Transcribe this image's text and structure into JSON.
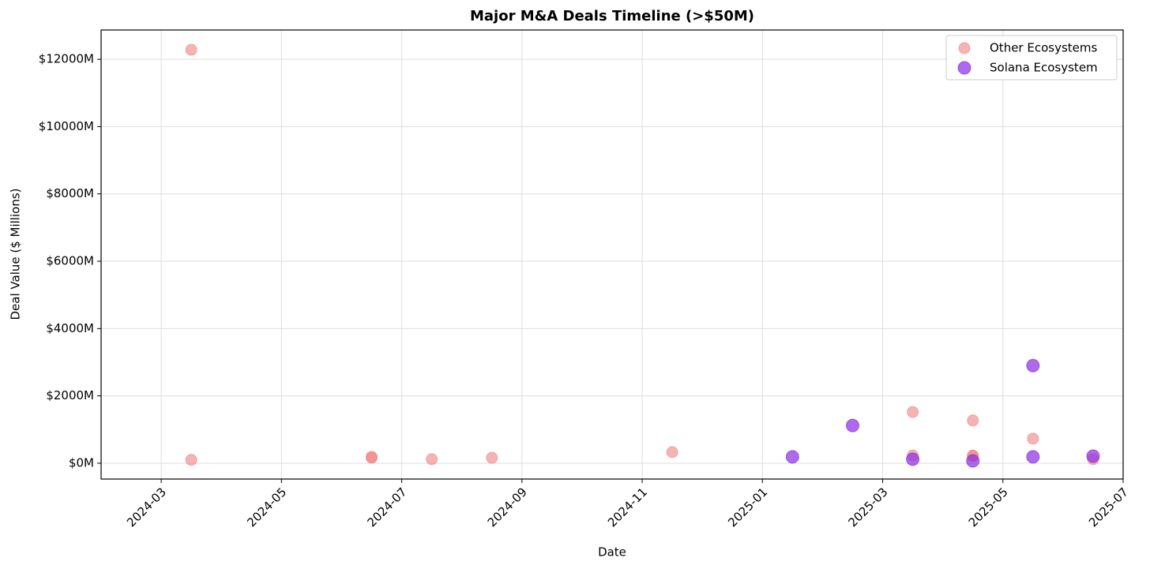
{
  "chart_data": {
    "type": "scatter",
    "title": "Major M&A Deals Timeline (>$50M)",
    "x_label": "Date",
    "y_label": "Deal Value ($ Millions)",
    "series": [
      {
        "name": "Other Ecosystems",
        "color": "#f08080",
        "alpha": 0.6,
        "x": [
          "2024-03",
          "2024-03",
          "2024-06",
          "2024-06",
          "2024-07",
          "2024-08",
          "2024-11",
          "2025-03",
          "2025-03",
          "2025-04",
          "2025-04",
          "2025-04",
          "2025-05",
          "2025-06"
        ],
        "values": [
          12280,
          100,
          160,
          190,
          120,
          160,
          330,
          1520,
          230,
          1270,
          230,
          210,
          730,
          120
        ]
      },
      {
        "name": "Solana Ecosystem",
        "color": "#8a2be2",
        "alpha": 0.7,
        "x": [
          "2025-01",
          "2025-02",
          "2025-03",
          "2025-04",
          "2025-05",
          "2025-05",
          "2025-06"
        ],
        "values": [
          190,
          1120,
          120,
          70,
          2900,
          190,
          210
        ]
      }
    ],
    "xlim": [
      "2024-02",
      "2025-07"
    ],
    "xticks": [
      "2024-03",
      "2024-05",
      "2024-07",
      "2024-09",
      "2024-11",
      "2025-01",
      "2025-03",
      "2025-05",
      "2025-07"
    ],
    "ylim": [
      -470,
      12870
    ],
    "yticks": [
      {
        "value": 0,
        "label": "$0M"
      },
      {
        "value": 2000,
        "label": "$2000M"
      },
      {
        "value": 4000,
        "label": "$4000M"
      },
      {
        "value": 6000,
        "label": "$6000M"
      },
      {
        "value": 8000,
        "label": "$8000M"
      },
      {
        "value": 10000,
        "label": "$10000M"
      },
      {
        "value": 12000,
        "label": "$12000M"
      }
    ],
    "grid": true,
    "legend": "upper right"
  }
}
